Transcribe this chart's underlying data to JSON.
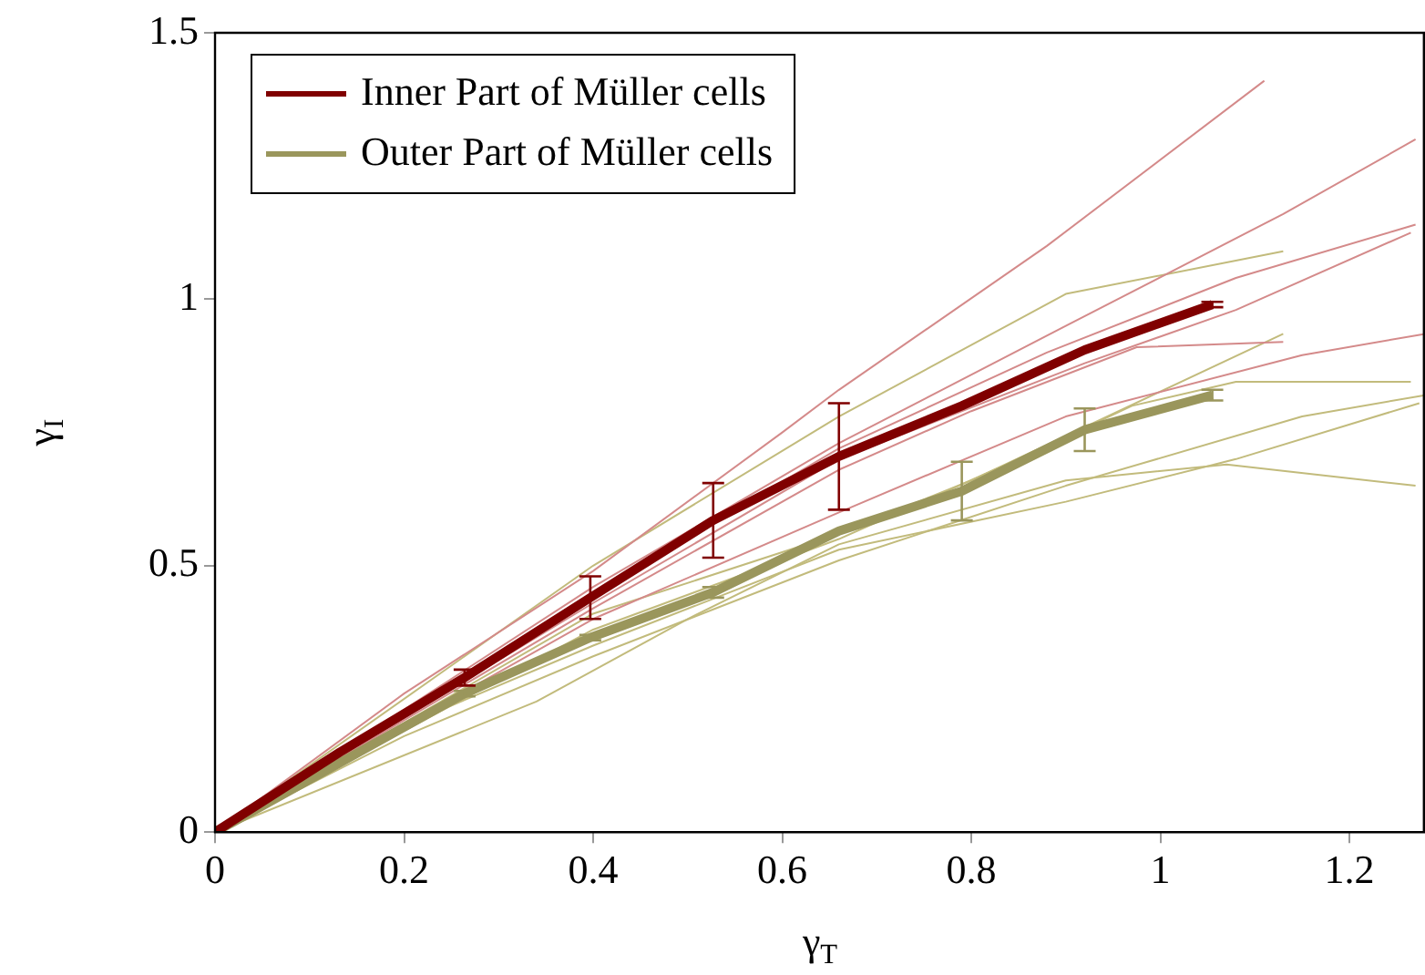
{
  "chart_data": {
    "type": "line",
    "xlabel": "γ$_{T}$",
    "ylabel": "γ$_{I}$",
    "xlim": [
      0,
      1.28
    ],
    "ylim": [
      0,
      1.5
    ],
    "xticks": [
      0,
      0.2,
      0.4,
      0.6,
      0.8,
      1,
      1.2
    ],
    "yticks": [
      0,
      0.5,
      1,
      1.5
    ],
    "legend": "top left",
    "marker": "none",
    "line_style": "solid",
    "series": [
      {
        "color": "#d48a8a",
        "x": [
          0,
          0.2,
          0.4,
          0.6,
          0.66,
          0.88,
          1.11
        ],
        "values": [
          0,
          0.26,
          0.49,
          0.75,
          0.83,
          1.1,
          1.41
        ]
      },
      {
        "color": "#d48a8a",
        "x": [
          0,
          0.4,
          0.66,
          0.9,
          1.13,
          1.27
        ],
        "values": [
          0,
          0.46,
          0.73,
          0.95,
          1.16,
          1.3
        ]
      },
      {
        "color": "#d48a8a",
        "x": [
          0,
          0.4,
          0.66,
          0.88,
          1.08,
          1.27
        ],
        "values": [
          0,
          0.45,
          0.72,
          0.9,
          1.04,
          1.14
        ]
      },
      {
        "color": "#d48a8a",
        "x": [
          0,
          0.4,
          0.66,
          0.92,
          1.08,
          1.265
        ],
        "values": [
          0,
          0.43,
          0.7,
          0.88,
          0.98,
          1.125
        ]
      },
      {
        "color": "#d48a8a",
        "x": [
          0,
          0.4,
          0.66,
          0.8,
          0.975,
          1.13
        ],
        "values": [
          0,
          0.42,
          0.68,
          0.79,
          0.91,
          0.92
        ]
      },
      {
        "color": "#d48a8a",
        "x": [
          0,
          0.4,
          0.66,
          0.9,
          1.15,
          1.28
        ],
        "values": [
          0,
          0.4,
          0.6,
          0.78,
          0.895,
          0.935
        ]
      },
      {
        "color": "#c2bb7c",
        "x": [
          0,
          0.4,
          0.66,
          0.9,
          1.13
        ],
        "values": [
          0,
          0.5,
          0.78,
          1.01,
          1.09
        ]
      },
      {
        "color": "#c2bb7c",
        "x": [
          0,
          0.4,
          0.66,
          0.8,
          1.13
        ],
        "values": [
          0,
          0.41,
          0.56,
          0.66,
          0.935
        ]
      },
      {
        "color": "#c2bb7c",
        "x": [
          0,
          0.4,
          0.66,
          0.85,
          0.97,
          1.08,
          1.265
        ],
        "values": [
          0,
          0.38,
          0.55,
          0.7,
          0.8,
          0.845,
          0.845
        ]
      },
      {
        "color": "#c2bb7c",
        "x": [
          0,
          0.34,
          0.5,
          0.66,
          0.9,
          1.07,
          1.27
        ],
        "values": [
          0,
          0.245,
          0.4,
          0.54,
          0.66,
          0.69,
          0.65
        ]
      },
      {
        "color": "#c2bb7c",
        "x": [
          0,
          0.2,
          0.4,
          0.66,
          0.9,
          1.15,
          1.28
        ],
        "values": [
          0,
          0.18,
          0.33,
          0.51,
          0.65,
          0.78,
          0.82
        ]
      },
      {
        "color": "#c2bb7c",
        "x": [
          0,
          0.2,
          0.4,
          0.66,
          0.9,
          1.08,
          1.274
        ],
        "values": [
          0,
          0.2,
          0.35,
          0.53,
          0.62,
          0.7,
          0.805
        ]
      },
      {
        "name": "Inner Part of Müller cells",
        "color": "#800000",
        "x": [
          0,
          0.132,
          0.264,
          0.397,
          0.527,
          0.66,
          0.79,
          0.92,
          1.055
        ],
        "values": [
          0,
          0.15,
          0.29,
          0.44,
          0.585,
          0.705,
          0.8,
          0.905,
          0.99
        ],
        "errors": [
          null,
          null,
          0.015,
          0.04,
          0.07,
          0.1,
          null,
          null,
          0.005
        ]
      },
      {
        "name": "Outer Part of Müller cells",
        "color": "#9a965c",
        "x": [
          0,
          0.132,
          0.264,
          0.397,
          0.527,
          0.66,
          0.79,
          0.92,
          1.055
        ],
        "values": [
          0,
          0.13,
          0.26,
          0.365,
          0.45,
          0.565,
          0.64,
          0.755,
          0.82
        ],
        "errors": [
          null,
          null,
          0.005,
          0.005,
          0.01,
          null,
          0.055,
          0.04,
          0.01
        ]
      }
    ]
  }
}
